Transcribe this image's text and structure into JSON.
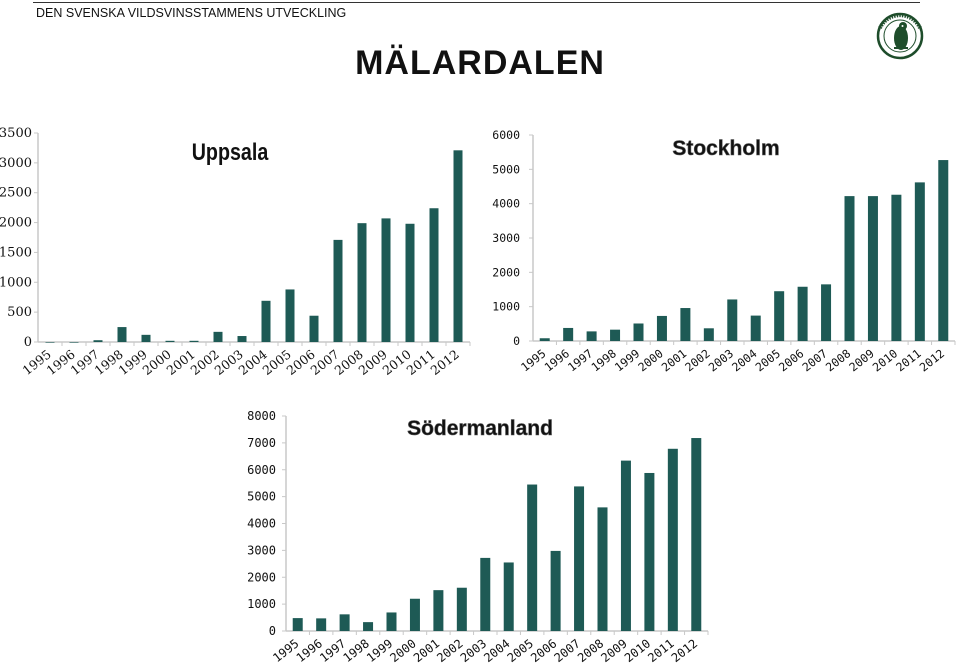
{
  "header": {
    "text": "DEN SVENSKA VILDSVINSSTAMMENS UTVECKLING",
    "title": "MÄLARDALEN",
    "logo_icon": "hunting-association-seal-icon"
  },
  "colors": {
    "bar": "#1e5a55",
    "axis": "#c8c8c8",
    "text": "#111111"
  },
  "chart_data": [
    {
      "type": "bar",
      "title": "Uppsala",
      "categories": [
        "1995",
        "1996",
        "1997",
        "1998",
        "1999",
        "2000",
        "2001",
        "2002",
        "2003",
        "2004",
        "2005",
        "2006",
        "2007",
        "2008",
        "2009",
        "2010",
        "2011",
        "2012"
      ],
      "values": [
        0,
        0,
        30,
        250,
        120,
        20,
        20,
        170,
        100,
        690,
        880,
        440,
        1710,
        1990,
        2070,
        1980,
        2240,
        3210
      ],
      "ylim": [
        0,
        3500
      ],
      "yticks": [
        "0",
        "500",
        "1000",
        "1500",
        "2000",
        "2500",
        "3000",
        "3500"
      ],
      "xlabel": "",
      "ylabel": "",
      "grid": false
    },
    {
      "type": "bar",
      "title": "Stockholm",
      "categories": [
        "1995",
        "1996",
        "1997",
        "1998",
        "1999",
        "2000",
        "2001",
        "2002",
        "2003",
        "2004",
        "2005",
        "2006",
        "2007",
        "2008",
        "2009",
        "2010",
        "2011",
        "2012"
      ],
      "values": [
        80,
        380,
        280,
        330,
        510,
        730,
        960,
        370,
        1210,
        740,
        1450,
        1580,
        1650,
        4220,
        4220,
        4260,
        4620,
        5270
      ],
      "ylim": [
        0,
        6000
      ],
      "yticks": [
        "0",
        "1000",
        "2000",
        "3000",
        "4000",
        "5000",
        "6000"
      ],
      "xlabel": "",
      "ylabel": "",
      "grid": false
    },
    {
      "type": "bar",
      "title": "Södermanland",
      "categories": [
        "1995",
        "1996",
        "1997",
        "1998",
        "1999",
        "2000",
        "2001",
        "2002",
        "2003",
        "2004",
        "2005",
        "2006",
        "2007",
        "2008",
        "2009",
        "2010",
        "2011",
        "2012"
      ],
      "values": [
        480,
        470,
        620,
        330,
        690,
        1200,
        1520,
        1610,
        2720,
        2550,
        5450,
        2980,
        5380,
        4600,
        6340,
        5880,
        6780,
        7180
      ],
      "ylim": [
        0,
        8000
      ],
      "yticks": [
        "0",
        "1000",
        "2000",
        "3000",
        "4000",
        "5000",
        "6000",
        "7000",
        "8000"
      ],
      "xlabel": "",
      "ylabel": "",
      "grid": false
    }
  ]
}
